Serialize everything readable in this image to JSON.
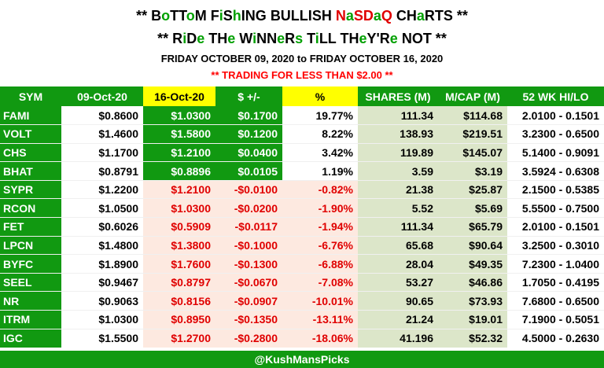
{
  "header": {
    "title_line1": [
      {
        "t": "** ",
        "c": "k"
      },
      {
        "t": "B",
        "c": "k"
      },
      {
        "t": "o",
        "c": "g"
      },
      {
        "t": "TT",
        "c": "k"
      },
      {
        "t": "o",
        "c": "g"
      },
      {
        "t": "M ",
        "c": "k"
      },
      {
        "t": "F",
        "c": "k"
      },
      {
        "t": "i",
        "c": "g"
      },
      {
        "t": "S",
        "c": "k"
      },
      {
        "t": "h",
        "c": "g"
      },
      {
        "t": "I",
        "c": "k"
      },
      {
        "t": "N",
        "c": "k"
      },
      {
        "t": "G ",
        "c": "k"
      },
      {
        "t": "BULLI",
        "c": "k"
      },
      {
        "t": "S",
        "c": "k"
      },
      {
        "t": "H ",
        "c": "k"
      },
      {
        "t": "N",
        "c": "r"
      },
      {
        "t": "a",
        "c": "g"
      },
      {
        "t": "SD",
        "c": "r"
      },
      {
        "t": "a",
        "c": "g"
      },
      {
        "t": "Q ",
        "c": "r"
      },
      {
        "t": "CH",
        "c": "k"
      },
      {
        "t": "a",
        "c": "g"
      },
      {
        "t": "RTS **",
        "c": "k"
      }
    ],
    "title_line2": [
      {
        "t": "** R",
        "c": "k"
      },
      {
        "t": "i",
        "c": "g"
      },
      {
        "t": "D",
        "c": "k"
      },
      {
        "t": "e",
        "c": "g"
      },
      {
        "t": " TH",
        "c": "k"
      },
      {
        "t": "e",
        "c": "g"
      },
      {
        "t": " W",
        "c": "k"
      },
      {
        "t": "i",
        "c": "g"
      },
      {
        "t": "NN",
        "c": "k"
      },
      {
        "t": "e",
        "c": "g"
      },
      {
        "t": "R",
        "c": "k"
      },
      {
        "t": "s",
        "c": "g"
      },
      {
        "t": " T",
        "c": "k"
      },
      {
        "t": "i",
        "c": "g"
      },
      {
        "t": "LL TH",
        "c": "k"
      },
      {
        "t": "e",
        "c": "g"
      },
      {
        "t": "Y'R",
        "c": "k"
      },
      {
        "t": "e",
        "c": "g"
      },
      {
        "t": " NOT **",
        "c": "k"
      }
    ],
    "date_range": "FRIDAY OCTOBER 09, 2020 to FRIDAY OCTOBER 16, 2020",
    "subtitle": "** TRADING FOR LESS THAN $2.00 **"
  },
  "table": {
    "columns": [
      "SYM",
      "09-Oct-20",
      "16-Oct-20",
      "$ +/-",
      "%",
      "SHARES (M)",
      "M/CAP (M)",
      "52 WK HI/LO"
    ],
    "rows": [
      {
        "sym": "FAMI",
        "prev": "$0.8600",
        "curr": "$1.0300",
        "chg": "$0.1700",
        "pct": "19.77%",
        "shares": "111.34",
        "mcap": "$114.68",
        "hilo": "2.0100 - 0.1501",
        "up": true
      },
      {
        "sym": "VOLT",
        "prev": "$1.4600",
        "curr": "$1.5800",
        "chg": "$0.1200",
        "pct": "8.22%",
        "shares": "138.93",
        "mcap": "$219.51",
        "hilo": "3.2300 - 0.6500",
        "up": true
      },
      {
        "sym": "CHS",
        "prev": "$1.1700",
        "curr": "$1.2100",
        "chg": "$0.0400",
        "pct": "3.42%",
        "shares": "119.89",
        "mcap": "$145.07",
        "hilo": "5.1400 - 0.9091",
        "up": true
      },
      {
        "sym": "BHAT",
        "prev": "$0.8791",
        "curr": "$0.8896",
        "chg": "$0.0105",
        "pct": "1.19%",
        "shares": "3.59",
        "mcap": "$3.19",
        "hilo": "3.5924 - 0.6308",
        "up": true
      },
      {
        "sym": "SYPR",
        "prev": "$1.2200",
        "curr": "$1.2100",
        "chg": "-$0.0100",
        "pct": "-0.82%",
        "shares": "21.38",
        "mcap": "$25.87",
        "hilo": "2.1500 - 0.5385",
        "up": false
      },
      {
        "sym": "RCON",
        "prev": "$1.0500",
        "curr": "$1.0300",
        "chg": "-$0.0200",
        "pct": "-1.90%",
        "shares": "5.52",
        "mcap": "$5.69",
        "hilo": "5.5500 - 0.7500",
        "up": false
      },
      {
        "sym": "FET",
        "prev": "$0.6026",
        "curr": "$0.5909",
        "chg": "-$0.0117",
        "pct": "-1.94%",
        "shares": "111.34",
        "mcap": "$65.79",
        "hilo": "2.0100 - 0.1501",
        "up": false
      },
      {
        "sym": "LPCN",
        "prev": "$1.4800",
        "curr": "$1.3800",
        "chg": "-$0.1000",
        "pct": "-6.76%",
        "shares": "65.68",
        "mcap": "$90.64",
        "hilo": "3.2500 - 0.3010",
        "up": false
      },
      {
        "sym": "BYFC",
        "prev": "$1.8900",
        "curr": "$1.7600",
        "chg": "-$0.1300",
        "pct": "-6.88%",
        "shares": "28.04",
        "mcap": "$49.35",
        "hilo": "7.2300 - 1.0400",
        "up": false
      },
      {
        "sym": "SEEL",
        "prev": "$0.9467",
        "curr": "$0.8797",
        "chg": "-$0.0670",
        "pct": "-7.08%",
        "shares": "53.27",
        "mcap": "$46.86",
        "hilo": "1.7050 - 0.4195",
        "up": false
      },
      {
        "sym": "NR",
        "prev": "$0.9063",
        "curr": "$0.8156",
        "chg": "-$0.0907",
        "pct": "-10.01%",
        "shares": "90.65",
        "mcap": "$73.93",
        "hilo": "7.6800 - 0.6500",
        "up": false
      },
      {
        "sym": "ITRM",
        "prev": "$1.0300",
        "curr": "$0.8950",
        "chg": "-$0.1350",
        "pct": "-13.11%",
        "shares": "21.24",
        "mcap": "$19.01",
        "hilo": "7.1900 - 0.5051",
        "up": false
      },
      {
        "sym": "IGC",
        "prev": "$1.5500",
        "curr": "$1.2700",
        "chg": "-$0.2800",
        "pct": "-18.06%",
        "shares": "41.196",
        "mcap": "$52.32",
        "hilo": "4.5000 - 0.2630",
        "up": false
      }
    ]
  },
  "footer": {
    "handle": "@KushMansPicks"
  },
  "colors": {
    "green": "#119911",
    "yellow": "#ffff00",
    "red": "#e00000",
    "pink": "#fde9e0",
    "sage": "#dce6c9"
  }
}
